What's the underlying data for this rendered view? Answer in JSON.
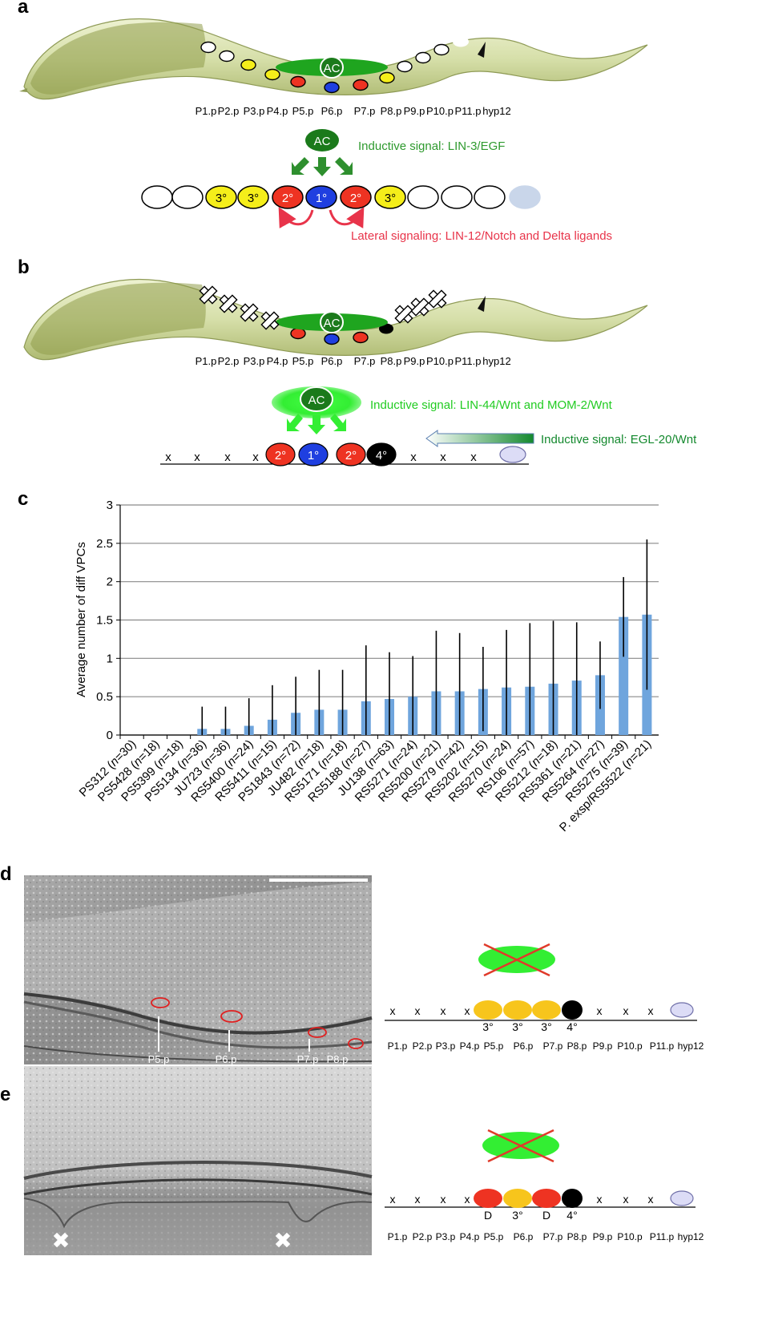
{
  "panel_a": {
    "letter": "a",
    "ac_label": "AC",
    "cell_labels": [
      "P1.p",
      "P2.p",
      "P3.p",
      "P4.p",
      "P5.p",
      "P6.p",
      "P7.p",
      "P8.p",
      "P9.p",
      "P10.p",
      "P11.p",
      "hyp12"
    ],
    "fates": [
      "",
      "",
      "3°",
      "3°",
      "2°",
      "1°",
      "2°",
      "3°",
      "",
      "",
      "",
      ""
    ],
    "inductive_signal": "Inductive signal: LIN-3/EGF",
    "lateral_signal": "Lateral signaling: LIN-12/Notch and Delta ligands"
  },
  "panel_b": {
    "letter": "b",
    "ac_label": "AC",
    "cell_labels": [
      "P1.p",
      "P2.p",
      "P3.p",
      "P4.p",
      "P5.p",
      "P6.p",
      "P7.p",
      "P8.p",
      "P9.p",
      "P10.p",
      "P11.p",
      "hyp12"
    ],
    "fates": [
      "x",
      "x",
      "x",
      "x",
      "2°",
      "1°",
      "2°",
      "4°",
      "x",
      "x",
      "x",
      ""
    ],
    "inductive_signal_wnt": "Inductive signal: LIN-44/Wnt and MOM-2/Wnt",
    "inductive_signal_egl": "Inductive signal: EGL-20/Wnt"
  },
  "panel_c": {
    "letter": "c"
  },
  "chart_data": {
    "type": "bar",
    "ylabel": "Average number of diff VPCs",
    "ylim": [
      0,
      3
    ],
    "yticks": [
      "0",
      "0.5",
      "1",
      "1.5",
      "2",
      "2.5",
      "3"
    ],
    "grid": true,
    "categories": [
      {
        "strain": "PS312",
        "n": "30"
      },
      {
        "strain": "PS5428",
        "n": "18"
      },
      {
        "strain": "PS5399",
        "n": "18"
      },
      {
        "strain": "PS5134",
        "n": "36"
      },
      {
        "strain": "JU723",
        "n": "36"
      },
      {
        "strain": "RS5400",
        "n": "24"
      },
      {
        "strain": "RS5411",
        "n": "15"
      },
      {
        "strain": "PS1843",
        "n": "72"
      },
      {
        "strain": "JU482",
        "n": "18"
      },
      {
        "strain": "RS5171",
        "n": "18"
      },
      {
        "strain": "RS5188",
        "n": "27"
      },
      {
        "strain": "JU138",
        "n": "63"
      },
      {
        "strain": "RS5271",
        "n": "24"
      },
      {
        "strain": "RS5200",
        "n": "21"
      },
      {
        "strain": "RS5279",
        "n": "42"
      },
      {
        "strain": "RS5202",
        "n": "15"
      },
      {
        "strain": "RS5270",
        "n": "24"
      },
      {
        "strain": "RS106",
        "n": "57"
      },
      {
        "strain": "RS5212",
        "n": "18"
      },
      {
        "strain": "RS5361",
        "n": "21"
      },
      {
        "strain": "RS5264",
        "n": "27"
      },
      {
        "strain": "RS5275",
        "n": "39"
      },
      {
        "strain": "P. exsp/RS5522",
        "n": "21"
      }
    ],
    "values": [
      0,
      0,
      0,
      0.08,
      0.08,
      0.12,
      0.2,
      0.29,
      0.33,
      0.33,
      0.44,
      0.47,
      0.5,
      0.57,
      0.57,
      0.6,
      0.62,
      0.63,
      0.67,
      0.71,
      0.78,
      1.54,
      1.57
    ],
    "error_high": [
      0,
      0,
      0,
      0.37,
      0.37,
      0.48,
      0.65,
      0.76,
      0.85,
      0.85,
      1.17,
      1.08,
      1.03,
      1.36,
      1.33,
      1.15,
      1.37,
      1.46,
      1.49,
      1.47,
      1.22,
      2.06,
      2.55
    ],
    "bar_color": "#6fa5dd"
  },
  "panel_d": {
    "letter": "d",
    "photo_labels": [
      "P5.p",
      "P6.p",
      "P7.p",
      "P8.p"
    ],
    "fates": [
      "x",
      "x",
      "x",
      "x",
      "3°",
      "3°",
      "3°",
      "4°",
      "x",
      "x",
      "x",
      ""
    ],
    "cell_labels": [
      "P1.p",
      "P2.p",
      "P3.p",
      "P4.p",
      "P5.p",
      "P6.p",
      "P7.p",
      "P8.p",
      "P9.p",
      "P10.p",
      "P11.p",
      "hyp12"
    ]
  },
  "panel_e": {
    "letter": "e",
    "fates": [
      "x",
      "x",
      "x",
      "x",
      "D",
      "3°",
      "D",
      "4°",
      "x",
      "x",
      "x",
      ""
    ],
    "cell_labels": [
      "P1.p",
      "P2.p",
      "P3.p",
      "P4.p",
      "P5.p",
      "P6.p",
      "P7.p",
      "P8.p",
      "P9.p",
      "P10.p",
      "P11.p",
      "hyp12"
    ]
  },
  "colors": {
    "fate_1": "#1f3fe0",
    "fate_2": "#ee3322",
    "fate_3": "#f5ee1a",
    "fate_3_gold": "#f7c51c",
    "fate_4": "#000000",
    "ac_dark": "#1b7a1b",
    "wnt_green": "#33ee33",
    "egf_text": "#2e9a2e",
    "lateral_text": "#e8344a",
    "wnt_text": "#22cc22",
    "worm_body": "#d9e2ae",
    "worm_dark": "#a9b86a"
  }
}
